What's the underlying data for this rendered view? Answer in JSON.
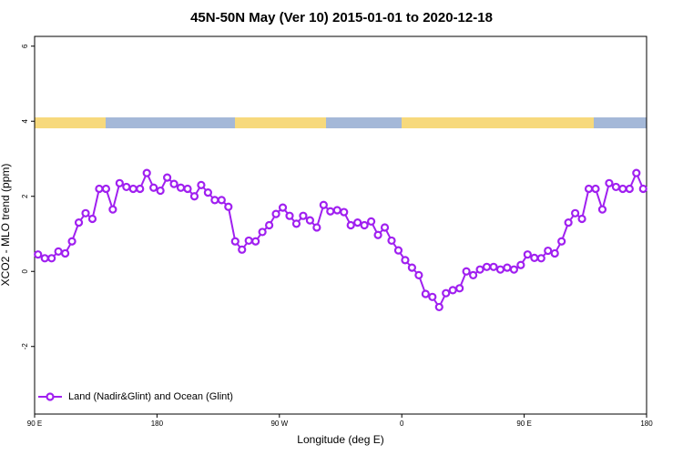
{
  "chart_data": {
    "type": "line",
    "title": "45N-50N May (Ver 10)   2015-01-01 to 2020-12-18",
    "xlabel": "Longitude (deg E)",
    "ylabel": "XCO2 - MLO trend (ppm)",
    "x": [
      92.5,
      97.5,
      102.5,
      107.5,
      112.5,
      117.5,
      122.5,
      127.5,
      132.5,
      137.5,
      142.5,
      147.5,
      152.5,
      157.5,
      162.5,
      167.5,
      172.5,
      177.5,
      182.5,
      187.5,
      192.5,
      197.5,
      202.5,
      207.5,
      212.5,
      217.5,
      222.5,
      227.5,
      232.5,
      237.5,
      242.5,
      247.5,
      252.5,
      257.5,
      262.5,
      267.5,
      272.5,
      277.5,
      282.5,
      287.5,
      292.5,
      297.5,
      302.5,
      307.5,
      312.5,
      317.5,
      322.5,
      327.5,
      332.5,
      337.5,
      342.5,
      347.5,
      352.5,
      357.5,
      362.5,
      367.5,
      372.5,
      377.5,
      382.5,
      387.5,
      392.5,
      397.5,
      402.5,
      407.5,
      412.5,
      417.5,
      422.5,
      427.5,
      432.5,
      437.5,
      442.5,
      447.5,
      452.5,
      457.5,
      462.5,
      467.5,
      472.5,
      477.5,
      482.5,
      487.5,
      492.5,
      497.5,
      502.5,
      507.5,
      512.5,
      517.5,
      522.5,
      527.5,
      532.5,
      537.5
    ],
    "series": [
      {
        "name": "Land (Nadir&Glint) and Ocean (Glint)",
        "color": "#a020f0",
        "values": [
          0.45,
          0.35,
          0.35,
          0.53,
          0.48,
          0.8,
          1.3,
          1.55,
          1.4,
          2.2,
          2.2,
          1.65,
          2.35,
          2.25,
          2.2,
          2.2,
          2.62,
          2.23,
          2.15,
          2.5,
          2.33,
          2.23,
          2.2,
          2.0,
          2.3,
          2.1,
          1.9,
          1.9,
          1.72,
          0.8,
          0.58,
          0.82,
          0.8,
          1.05,
          1.23,
          1.53,
          1.7,
          1.48,
          1.27,
          1.48,
          1.36,
          1.17,
          1.77,
          1.6,
          1.63,
          1.58,
          1.23,
          1.3,
          1.23,
          1.33,
          0.97,
          1.17,
          0.82,
          0.56,
          0.3,
          0.1,
          -0.1,
          -0.6,
          -0.68,
          -0.95,
          -0.58,
          -0.5,
          -0.45,
          0.0,
          -0.1,
          0.05,
          0.12,
          0.12,
          0.05,
          0.1,
          0.05,
          0.17,
          0.45,
          0.36,
          0.35,
          0.55,
          0.48,
          0.8,
          1.3,
          1.55,
          1.4,
          2.2,
          2.2,
          1.65,
          2.35,
          2.25,
          2.2,
          2.2,
          2.62,
          2.2
        ]
      }
    ],
    "xlim": [
      90,
      540
    ],
    "xticks": [
      {
        "value": 90,
        "label": "90 E"
      },
      {
        "value": 180,
        "label": "180"
      },
      {
        "value": 270,
        "label": "90 W"
      },
      {
        "value": 360,
        "label": "0"
      },
      {
        "value": 450,
        "label": "90 E"
      },
      {
        "value": 540,
        "label": "180"
      }
    ],
    "ylim": [
      -3.8,
      6.26
    ],
    "yticks": [
      -2,
      0,
      2,
      4,
      6
    ],
    "legend": "bottom-left"
  }
}
